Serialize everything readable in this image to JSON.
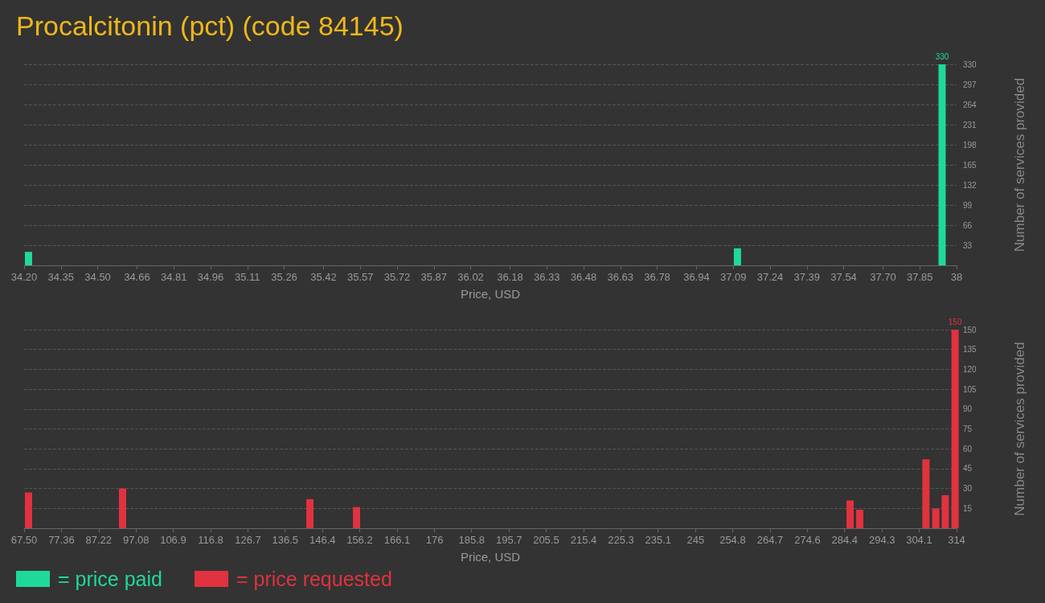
{
  "chart_data": [
    {
      "type": "bar",
      "title": "Procalcitonin (pct) (code 84145)",
      "xlabel": "Price, USD",
      "ylabel": "Number of services provided",
      "series": [
        {
          "name": "= price paid",
          "color": "#1fd99a",
          "x": [
            34.218,
            37.107,
            37.941
          ],
          "values": [
            22,
            28,
            330
          ],
          "value_labels": [
            null,
            null,
            "330"
          ]
        }
      ],
      "xlim": [
        34.2,
        38
      ],
      "xticks": [
        {
          "value": 34.2,
          "label": "34.20"
        },
        34.35,
        {
          "value": 34.5,
          "label": "34.50"
        },
        34.66,
        34.81,
        34.96,
        35.11,
        35.26,
        35.42,
        35.57,
        35.72,
        35.87,
        36.02,
        36.18,
        36.33,
        36.48,
        36.63,
        36.78,
        36.94,
        37.09,
        37.24,
        37.39,
        37.54,
        {
          "value": 37.7,
          "label": "37.70"
        },
        37.85,
        38
      ],
      "ylim": [
        0,
        330
      ],
      "yticks": [
        33,
        66,
        99,
        132,
        165,
        198,
        231,
        264,
        297,
        330
      ],
      "grid": "y",
      "legend": "bottom left"
    },
    {
      "type": "bar",
      "xlabel": "Price, USD",
      "ylabel": "Number of services provided",
      "series": [
        {
          "name": "= price requested",
          "color": "#e0323f",
          "x": [
            68.67,
            93.53,
            143.05,
            155.37,
            285.85,
            288.4,
            305.9,
            308.5,
            311.0,
            313.6
          ],
          "values": [
            27,
            30,
            22,
            16,
            21,
            14,
            52,
            15,
            25,
            150
          ],
          "value_labels": [
            null,
            null,
            null,
            null,
            null,
            null,
            null,
            null,
            null,
            "150"
          ]
        }
      ],
      "xlim": [
        67.5,
        314
      ],
      "xticks": [
        {
          "value": 67.5,
          "label": "67.50"
        },
        77.36,
        87.22,
        97.08,
        106.9,
        116.8,
        126.7,
        136.5,
        146.4,
        156.2,
        166.1,
        176,
        185.8,
        195.7,
        205.5,
        215.4,
        225.3,
        235.1,
        245,
        254.8,
        264.7,
        274.6,
        284.4,
        294.3,
        304.1,
        314
      ],
      "ylim": [
        0,
        150
      ],
      "yticks": [
        15,
        30,
        45,
        60,
        75,
        90,
        105,
        120,
        135,
        150
      ],
      "grid": "y",
      "legend": "bottom left"
    }
  ]
}
